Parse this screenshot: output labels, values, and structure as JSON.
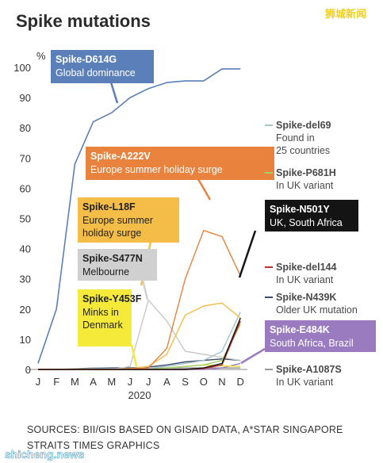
{
  "header": {
    "title": "Spike mutations",
    "watermark_top": "狮城新闻"
  },
  "footer": {
    "sources_line1": "SOURCES: BII/GIS BASED ON GISAID DATA, A*STAR SINGAPORE",
    "sources_line2": "STRAITS TIMES GRAPHICS",
    "watermark_bottom": "shicheng.news"
  },
  "chart_data": {
    "type": "line",
    "title": "Spike mutations",
    "ylabel": "%",
    "ylim": [
      0,
      100
    ],
    "yticks": [
      0,
      10,
      20,
      30,
      40,
      50,
      60,
      70,
      80,
      90,
      100
    ],
    "categories": [
      "J",
      "F",
      "M",
      "A",
      "M",
      "J",
      "J",
      "A",
      "S",
      "O",
      "N",
      "D"
    ],
    "year_label": "2020",
    "series": [
      {
        "key": "d614g",
        "name": "Spike-D614G",
        "desc": "Global dominance",
        "color": "#5b7fb8",
        "values": [
          2,
          20,
          68,
          82,
          85,
          90,
          93,
          95,
          95.5,
          95.5,
          99.5,
          99.5
        ]
      },
      {
        "key": "a222v",
        "name": "Spike-A222V",
        "desc": "Europe summer holiday surge",
        "color": "#e8823c",
        "values": [
          0,
          0,
          0,
          0,
          0,
          0.2,
          0.5,
          7,
          30,
          46,
          44,
          31
        ]
      },
      {
        "key": "l18f",
        "name": "Spike-L18F",
        "desc": "Europe summer holiday surge",
        "color": "#f3bd47",
        "values": [
          0,
          0,
          0,
          0,
          0,
          0.3,
          1,
          5,
          18,
          21,
          22,
          17
        ]
      },
      {
        "key": "s477n",
        "name": "Spike-S477N",
        "desc": "Melbourne",
        "color": "#c8c8c8",
        "values": [
          0,
          0,
          0,
          0,
          0,
          1,
          23,
          16,
          6,
          5,
          4,
          3
        ]
      },
      {
        "key": "y453f",
        "name": "Spike-Y453F",
        "desc": "Minks in Denmark",
        "color": "#f0e030",
        "values": [
          0,
          0,
          0,
          0,
          0,
          0,
          0,
          0.5,
          1,
          1.5,
          1.2,
          1
        ]
      },
      {
        "key": "del69",
        "name": "Spike-del69",
        "desc": "Found in 25 countries",
        "color": "#a9c2d2",
        "values": [
          0,
          0,
          0,
          0.2,
          0.3,
          0.3,
          0.5,
          1,
          2,
          3,
          6,
          19
        ]
      },
      {
        "key": "p681h",
        "name": "Spike-P681H",
        "desc": "In UK variant",
        "color": "#9cd06c",
        "values": [
          0,
          0,
          0,
          0,
          0,
          0,
          0,
          0.5,
          1,
          1.5,
          3,
          15
        ]
      },
      {
        "key": "n501y",
        "name": "Spike-N501Y",
        "desc": "UK, South Africa",
        "color": "#141414",
        "values": [
          0,
          0,
          0,
          0,
          0,
          0,
          0,
          0,
          0,
          0.5,
          2,
          17
        ]
      },
      {
        "key": "del144",
        "name": "Spike-del144",
        "desc": "In UK variant",
        "color": "#c0302a",
        "values": [
          0,
          0,
          0,
          0,
          0,
          0,
          0,
          0,
          0,
          0.3,
          1.5,
          16
        ]
      },
      {
        "key": "n439k",
        "name": "Spike-N439K",
        "desc": "Older UK mutation",
        "color": "#3a4a6a",
        "values": [
          0,
          0,
          0,
          0.3,
          0.5,
          0.5,
          0.8,
          1.5,
          2.5,
          3,
          3.5,
          3
        ]
      },
      {
        "key": "e484k",
        "name": "Spike-E484K",
        "desc": "South Africa, Brazil",
        "color": "#9b7bc0",
        "values": [
          0,
          0,
          0,
          0,
          0,
          0,
          0,
          0,
          0,
          0,
          0.5,
          2
        ]
      },
      {
        "key": "a1087s",
        "name": "Spike-A1087S",
        "desc": "In UK variant",
        "color": "#999999",
        "values": [
          0,
          0,
          0.2,
          0.5,
          0.5,
          0.5,
          0.5,
          0.5,
          0.5,
          0.5,
          0.5,
          0.5
        ]
      }
    ]
  }
}
